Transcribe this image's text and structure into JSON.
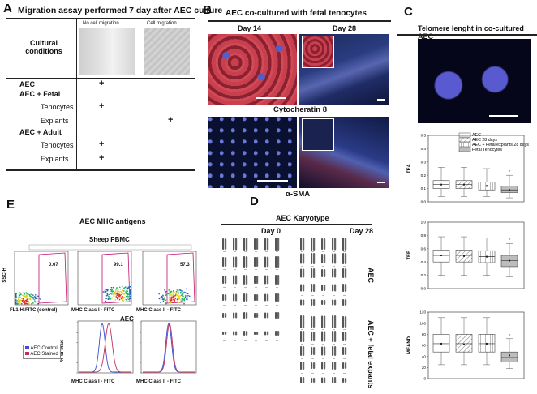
{
  "panel_a": {
    "letter": "A",
    "title": "Migration assay performed 7 day after AEC culture",
    "col_no_migration": "No cell migration",
    "col_migration": "Cell migration",
    "row_header": "Cultural conditions",
    "rows": [
      {
        "label": "AEC",
        "bold": true,
        "plus": "+",
        "col": "no"
      },
      {
        "label": "AEC + Fetal",
        "bold": true,
        "plus": "",
        "col": ""
      },
      {
        "label": "Tenocytes",
        "bold": false,
        "plus": "+",
        "col": "no"
      },
      {
        "label": "Explants",
        "bold": false,
        "plus": "+",
        "col": "yes"
      },
      {
        "label": "AEC + Adult",
        "bold": true,
        "plus": "",
        "col": ""
      },
      {
        "label": "Tenocytes",
        "bold": false,
        "plus": "+",
        "col": "no"
      },
      {
        "label": "Explants",
        "bold": false,
        "plus": "+",
        "col": "no"
      }
    ]
  },
  "panel_b": {
    "letter": "B",
    "title": "AEC co-cultured with fetal tenocytes",
    "day14": "Day 14",
    "day28": "Day 28",
    "marker1": "Cytocheratin 8",
    "marker2": "α-SMA"
  },
  "panel_c": {
    "letter": "C",
    "title": "Telomere lenght in co-cultured AEC",
    "legend": [
      "AEC",
      "AEC 28 days",
      "AEC + Fetal explants 28 days",
      "Fetal Tenocytes"
    ],
    "charts": [
      {
        "ylabel": "TEA",
        "ticks": [
          "0.0",
          "0.1",
          "0.2",
          "0.3",
          "0.4",
          "0.5"
        ],
        "ylim": [
          0,
          0.5
        ],
        "boxes": [
          {
            "q1": 0.1,
            "median": 0.13,
            "q3": 0.16,
            "min": 0.04,
            "max": 0.26,
            "mean": 0.13
          },
          {
            "q1": 0.1,
            "median": 0.13,
            "q3": 0.16,
            "min": 0.04,
            "max": 0.26,
            "mean": 0.13
          },
          {
            "q1": 0.09,
            "median": 0.12,
            "q3": 0.15,
            "min": 0.04,
            "max": 0.25,
            "mean": 0.12
          },
          {
            "q1": 0.07,
            "median": 0.09,
            "q3": 0.12,
            "min": 0.03,
            "max": 0.2,
            "mean": 0.09
          }
        ],
        "star": "*"
      },
      {
        "ylabel": "TEF",
        "ticks": [
          "0.0",
          "0.2",
          "0.4",
          "0.6",
          "0.8",
          "1.0"
        ],
        "ylim": [
          0,
          1.0
        ],
        "boxes": [
          {
            "q1": 0.4,
            "median": 0.5,
            "q3": 0.58,
            "min": 0.2,
            "max": 0.78,
            "mean": 0.5
          },
          {
            "q1": 0.4,
            "median": 0.5,
            "q3": 0.58,
            "min": 0.2,
            "max": 0.78,
            "mean": 0.49
          },
          {
            "q1": 0.39,
            "median": 0.48,
            "q3": 0.57,
            "min": 0.2,
            "max": 0.76,
            "mean": 0.48
          },
          {
            "q1": 0.33,
            "median": 0.42,
            "q3": 0.5,
            "min": 0.18,
            "max": 0.68,
            "mean": 0.42
          }
        ],
        "star": "*"
      },
      {
        "ylabel": "MEAND",
        "ticks": [
          "0",
          "20",
          "40",
          "60",
          "80",
          "100",
          "120"
        ],
        "ylim": [
          0,
          120
        ],
        "boxes": [
          {
            "q1": 48,
            "median": 63,
            "q3": 80,
            "min": 25,
            "max": 110,
            "mean": 63
          },
          {
            "q1": 48,
            "median": 63,
            "q3": 80,
            "min": 25,
            "max": 110,
            "mean": 62
          },
          {
            "q1": 48,
            "median": 63,
            "q3": 80,
            "min": 25,
            "max": 110,
            "mean": 63
          },
          {
            "q1": 30,
            "median": 38,
            "q3": 48,
            "min": 18,
            "max": 72,
            "mean": 42
          }
        ],
        "star": "*"
      }
    ]
  },
  "panel_d": {
    "letter": "D",
    "title": "AEC Karyotype",
    "day0": "Day 0",
    "day28": "Day 28",
    "label1": "AEC",
    "label2": "AEC + fetal expants"
  },
  "panel_e": {
    "letter": "E",
    "title": "AEC MHC antigens",
    "sheep_title": "Sheep PBMC",
    "flow": [
      {
        "xlabel": "FL1-H:FITC (control)",
        "value": "0.67"
      },
      {
        "xlabel": "MHC Class I - FITC",
        "value": "99.1"
      },
      {
        "xlabel": "MHC Class II - FITC",
        "value": "57.3"
      }
    ],
    "ssc": "SSC-H",
    "aec_title": "AEC",
    "pct_max": "% of Max",
    "legend_control": "AEC Control",
    "legend_stained": "AEC Stained",
    "hist_x1": "MHC Class I - FITC",
    "hist_x2": "MHC Class II - FITC",
    "colors": {
      "control": "#3a4fd1",
      "stained": "#c0305a",
      "gate": "#c01070"
    }
  }
}
